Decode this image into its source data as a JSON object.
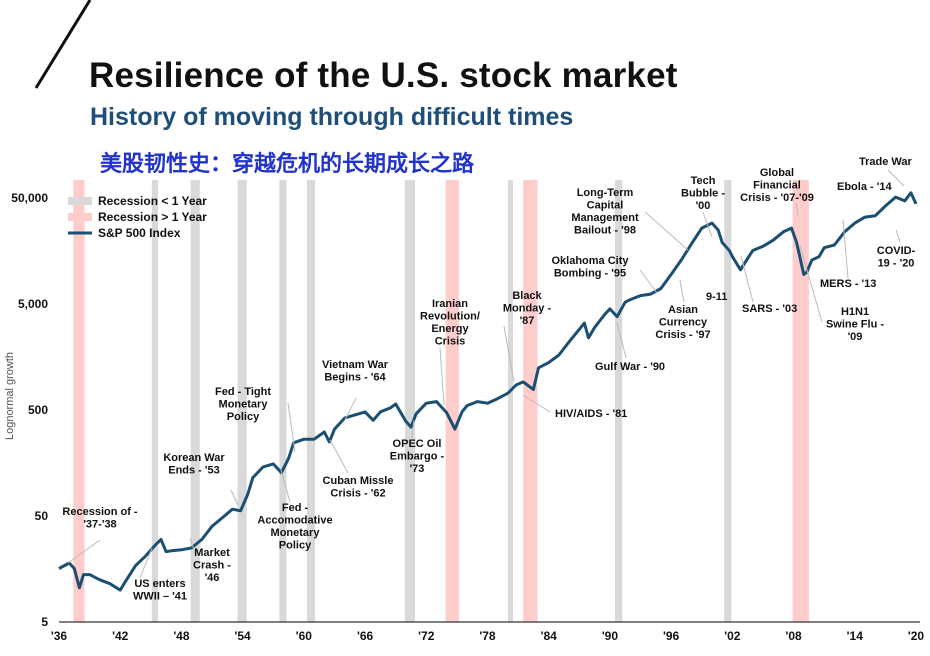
{
  "header": {
    "title": "Resilience of the U.S. stock market",
    "subtitle": "History of moving through difficult times",
    "subtitle_cn": "美股韧性史：穿越危机的长期成长之路"
  },
  "colors": {
    "line": "#1b4f72",
    "recession_short": "#d9d9d9",
    "recession_long": "#ffcccc",
    "title": "#111111",
    "subtitle": "#1f4e79",
    "subtitle_cn": "#2233cc"
  },
  "chart_data": {
    "type": "line",
    "title": "Resilience of the U.S. stock market",
    "xlabel": "",
    "ylabel": "Lognormal growth",
    "yscale": "log",
    "xlim": [
      1936,
      2020
    ],
    "ylim": [
      5,
      100000
    ],
    "yticks": [
      5,
      50,
      500,
      5000,
      50000
    ],
    "ytick_labels": [
      "5",
      "50",
      "500",
      "5,000",
      "50,000"
    ],
    "xticks": [
      1936,
      1942,
      1948,
      1954,
      1960,
      1966,
      1972,
      1978,
      1984,
      1990,
      1996,
      2002,
      2008,
      2014,
      2020
    ],
    "xtick_labels": [
      "'36",
      "'42",
      "'48",
      "'54",
      "'60",
      "'66",
      "'72",
      "'78",
      "'84",
      "'90",
      "'96",
      "'02",
      "'08",
      "'14",
      "'20"
    ],
    "legend": {
      "placement": "top-left",
      "entries": [
        {
          "label": "Recession < 1 Year",
          "kind": "short"
        },
        {
          "label": "Recession > 1 Year",
          "kind": "long"
        },
        {
          "label": "S&P 500 Index",
          "kind": "line"
        }
      ]
    },
    "recessions": [
      {
        "start": 1937.4,
        "end": 1938.5,
        "kind": "long"
      },
      {
        "start": 1945.1,
        "end": 1945.7,
        "kind": "short"
      },
      {
        "start": 1948.9,
        "end": 1949.8,
        "kind": "short"
      },
      {
        "start": 1953.5,
        "end": 1954.4,
        "kind": "short"
      },
      {
        "start": 1957.6,
        "end": 1958.3,
        "kind": "short"
      },
      {
        "start": 1960.3,
        "end": 1961.1,
        "kind": "short"
      },
      {
        "start": 1969.9,
        "end": 1970.9,
        "kind": "short"
      },
      {
        "start": 1973.9,
        "end": 1975.2,
        "kind": "long"
      },
      {
        "start": 1980.0,
        "end": 1980.5,
        "kind": "short"
      },
      {
        "start": 1981.5,
        "end": 1982.9,
        "kind": "long"
      },
      {
        "start": 1990.5,
        "end": 1991.2,
        "kind": "short"
      },
      {
        "start": 2001.2,
        "end": 2001.9,
        "kind": "short"
      },
      {
        "start": 2007.9,
        "end": 2009.5,
        "kind": "long"
      }
    ],
    "series": [
      {
        "name": "S&P 500 Index",
        "x": [
          1936.0,
          1937.0,
          1937.5,
          1938.0,
          1938.4,
          1939.0,
          1940.0,
          1941.0,
          1942.0,
          1942.5,
          1943.5,
          1944.5,
          1945.5,
          1946.0,
          1946.5,
          1947.0,
          1948.0,
          1949.0,
          1950.0,
          1951.0,
          1952.0,
          1953.0,
          1953.8,
          1954.5,
          1955.0,
          1956.0,
          1957.0,
          1957.8,
          1958.5,
          1959.0,
          1960.0,
          1961.0,
          1962.0,
          1962.5,
          1963.0,
          1964.0,
          1965.0,
          1966.0,
          1966.8,
          1967.5,
          1968.5,
          1969.0,
          1970.0,
          1970.5,
          1971.0,
          1972.0,
          1973.0,
          1974.0,
          1974.8,
          1975.5,
          1976.0,
          1977.0,
          1978.0,
          1979.0,
          1980.0,
          1980.8,
          1981.5,
          1982.5,
          1983.0,
          1984.0,
          1985.0,
          1986.0,
          1987.5,
          1987.9,
          1988.5,
          1989.5,
          1990.0,
          1990.7,
          1991.5,
          1992.0,
          1993.0,
          1994.0,
          1995.0,
          1996.0,
          1997.0,
          1998.0,
          1999.0,
          2000.0,
          2000.6,
          2001.0,
          2001.7,
          2002.0,
          2002.8,
          2003.5,
          2004.0,
          2005.0,
          2006.0,
          2007.0,
          2007.8,
          2008.3,
          2009.0,
          2009.3,
          2009.8,
          2010.5,
          2011.0,
          2012.0,
          2013.0,
          2014.0,
          2015.0,
          2016.0,
          2017.0,
          2018.0,
          2018.9,
          2019.5,
          2020.0
        ],
        "y": [
          16,
          18,
          16,
          10.5,
          14,
          14,
          12.5,
          11.5,
          10,
          12,
          17,
          21,
          27,
          30,
          23,
          23.5,
          24,
          25,
          30,
          40,
          48,
          58,
          56,
          80,
          115,
          145,
          155,
          128,
          175,
          245,
          265,
          265,
          310,
          250,
          330,
          420,
          450,
          480,
          400,
          480,
          525,
          570,
          390,
          345,
          460,
          580,
          600,
          470,
          330,
          480,
          550,
          600,
          580,
          640,
          720,
          860,
          920,
          780,
          1250,
          1400,
          1650,
          2200,
          3300,
          2400,
          3000,
          4000,
          4500,
          3800,
          5200,
          5500,
          6000,
          6200,
          7000,
          9500,
          13000,
          18500,
          26000,
          29000,
          25000,
          19000,
          16000,
          14000,
          10500,
          13500,
          16000,
          17500,
          20000,
          24000,
          26000,
          19000,
          9500,
          10000,
          13000,
          14000,
          17000,
          18000,
          24000,
          29000,
          33000,
          34000,
          42000,
          51000,
          47000,
          56000,
          44000
        ]
      }
    ],
    "annotations": [
      {
        "lines": [
          "Recession of  -",
          "'37-'38"
        ]
      },
      {
        "lines": [
          "US enters",
          "WWII – '41"
        ]
      },
      {
        "lines": [
          "Market",
          "Crash -",
          "'46"
        ]
      },
      {
        "lines": [
          "Korean War",
          "Ends - '53"
        ]
      },
      {
        "lines": [
          "Fed - Tight",
          "Monetary",
          "Policy"
        ]
      },
      {
        "lines": [
          "Fed -",
          "Accomodative",
          "Monetary",
          "Policy"
        ]
      },
      {
        "lines": [
          "Vietnam War",
          "Begins - '64"
        ]
      },
      {
        "lines": [
          "Cuban Missle",
          "Crisis - '62"
        ]
      },
      {
        "lines": [
          "OPEC Oil",
          "Embargo -",
          "'73"
        ]
      },
      {
        "lines": [
          "Iranian",
          "Revolution/",
          "Energy",
          "Crisis"
        ]
      },
      {
        "lines": [
          "Black",
          "Monday -",
          "'87"
        ]
      },
      {
        "lines": [
          "HIV/AIDS - '81"
        ]
      },
      {
        "lines": [
          "Oklahoma City",
          "Bombing - '95"
        ]
      },
      {
        "lines": [
          "Long-Term",
          "Capital",
          "Management",
          "Bailout - '98"
        ]
      },
      {
        "lines": [
          "Gulf War - '90"
        ]
      },
      {
        "lines": [
          "Asian",
          "Currency",
          "Crisis - '97"
        ]
      },
      {
        "lines": [
          "Tech",
          "Bubble -",
          "'00"
        ]
      },
      {
        "lines": [
          "9-11"
        ]
      },
      {
        "lines": [
          "SARS - '03"
        ]
      },
      {
        "lines": [
          "Global",
          "Financial",
          "Crisis - '07-'09"
        ]
      },
      {
        "lines": [
          "H1N1",
          "Swine Flu -",
          "'09"
        ]
      },
      {
        "lines": [
          "MERS - '13"
        ]
      },
      {
        "lines": [
          "Ebola - '14"
        ]
      },
      {
        "lines": [
          "Trade War"
        ]
      },
      {
        "lines": [
          "COVID-",
          "19 - '20"
        ]
      }
    ]
  }
}
